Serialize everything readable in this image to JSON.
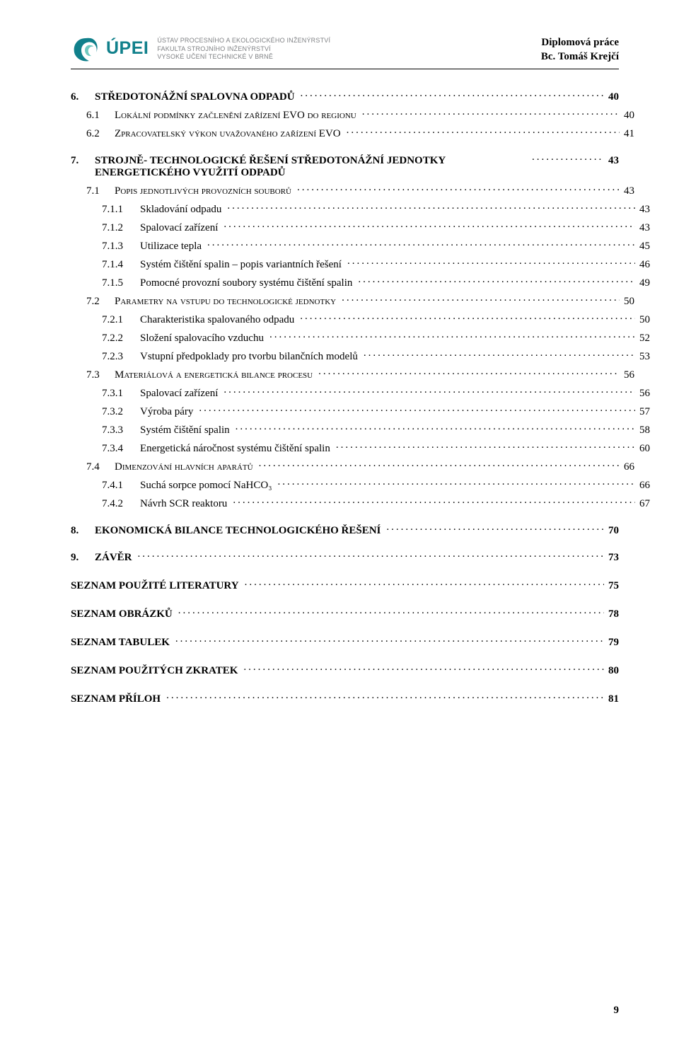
{
  "header": {
    "upei_word": "ÚPEI",
    "institute_lines": [
      "ÚSTAV PROCESNÍHO A EKOLOGICKÉHO INŽENÝRSTVÍ",
      "FAKULTA STROJNÍHO INŽENÝRSTVÍ",
      "VYSOKÉ UČENÍ TECHNICKÉ V BRNĚ"
    ],
    "thesis_label": "Diplomová práce",
    "author": "Bc. Tomáš Krejčí",
    "logo_colors": {
      "swirl": "#10808b",
      "accent": "#6fc9c0"
    }
  },
  "toc": [
    {
      "level": 1,
      "num": "6.",
      "title": "STŘEDOTONÁŽNÍ SPALOVNA ODPADŮ",
      "page": "40"
    },
    {
      "level": 2,
      "num": "6.1",
      "title": "Lokální podmínky začlenění zařízení EVO do regionu",
      "page": "40"
    },
    {
      "level": 2,
      "num": "6.2",
      "title": "Zpracovatelský výkon uvažovaného zařízení EVO",
      "page": "41"
    },
    {
      "level": 1,
      "num": "7.",
      "title": "STROJNĚ- TECHNOLOGICKÉ ŘEŠENÍ STŘEDOTONÁŽNÍ JEDNOTKY ENERGETICKÉHO VYUŽITÍ ODPADŮ",
      "page": "43",
      "multiline": true
    },
    {
      "level": 2,
      "num": "7.1",
      "title": "Popis jednotlivých provozních souborů",
      "page": "43"
    },
    {
      "level": 3,
      "num": "7.1.1",
      "title": "Skladování odpadu",
      "page": "43"
    },
    {
      "level": 3,
      "num": "7.1.2",
      "title": "Spalovací zařízení",
      "page": "43"
    },
    {
      "level": 3,
      "num": "7.1.3",
      "title": "Utilizace tepla",
      "page": "45"
    },
    {
      "level": 3,
      "num": "7.1.4",
      "title": "Systém čištění spalin – popis variantních řešení",
      "page": "46"
    },
    {
      "level": 3,
      "num": "7.1.5",
      "title": "Pomocné provozní soubory systému čištění spalin",
      "page": "49"
    },
    {
      "level": 2,
      "num": "7.2",
      "title": "Parametry na vstupu do technologické jednotky",
      "page": "50"
    },
    {
      "level": 3,
      "num": "7.2.1",
      "title": "Charakteristika spalovaného odpadu",
      "page": "50"
    },
    {
      "level": 3,
      "num": "7.2.2",
      "title": "Složení spalovacího vzduchu",
      "page": "52"
    },
    {
      "level": 3,
      "num": "7.2.3",
      "title": "Vstupní předpoklady pro tvorbu bilančních modelů",
      "page": "53"
    },
    {
      "level": 2,
      "num": "7.3",
      "title": "Materiálová a energetická bilance procesu",
      "page": "56"
    },
    {
      "level": 3,
      "num": "7.3.1",
      "title": "Spalovací zařízení",
      "page": "56"
    },
    {
      "level": 3,
      "num": "7.3.2",
      "title": "Výroba páry",
      "page": "57"
    },
    {
      "level": 3,
      "num": "7.3.3",
      "title": "Systém čištění spalin",
      "page": "58"
    },
    {
      "level": 3,
      "num": "7.3.4",
      "title": "Energetická náročnost systému čištění spalin",
      "page": "60"
    },
    {
      "level": 2,
      "num": "7.4",
      "title": "Dimenzování hlavních aparátů",
      "page": "66"
    },
    {
      "level": 3,
      "num": "7.4.1",
      "title": "Suchá sorpce pomocí NaHCO₃",
      "page": "66"
    },
    {
      "level": 3,
      "num": "7.4.2",
      "title": "Návrh SCR reaktoru",
      "page": "67"
    },
    {
      "level": 1,
      "num": "8.",
      "title": "EKONOMICKÁ BILANCE TECHNOLOGICKÉHO ŘEŠENÍ",
      "page": "70"
    },
    {
      "level": 1,
      "num": "9.",
      "title": "ZÁVĚR",
      "page": "73"
    },
    {
      "level": 1,
      "num": "",
      "title": "SEZNAM POUŽITÉ LITERATURY",
      "page": "75"
    },
    {
      "level": 1,
      "num": "",
      "title": "SEZNAM OBRÁZKŮ",
      "page": "78"
    },
    {
      "level": 1,
      "num": "",
      "title": "SEZNAM TABULEK",
      "page": "79"
    },
    {
      "level": 1,
      "num": "",
      "title": "SEZNAM POUŽITÝCH ZKRATEK",
      "page": "80"
    },
    {
      "level": 1,
      "num": "",
      "title": "SEZNAM PŘÍLOH",
      "page": "81"
    }
  ],
  "page_number": "9"
}
